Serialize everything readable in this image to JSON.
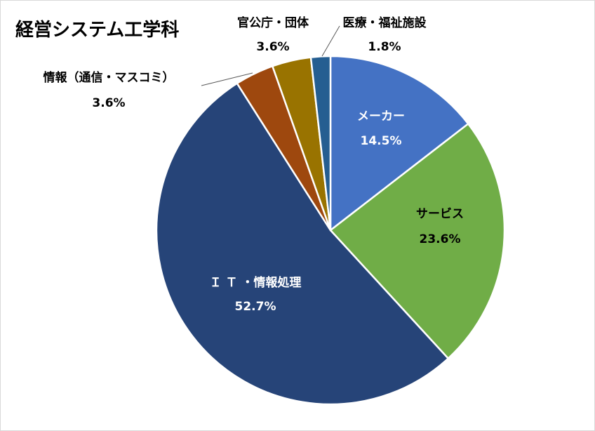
{
  "chart_data": {
    "type": "pie",
    "title": "経営システム工学科",
    "slices": [
      {
        "label": "メーカー",
        "value": 14.5,
        "pct": "14.5%",
        "color": "#4472c4",
        "text_color": "#ffffff"
      },
      {
        "label": "サービス",
        "value": 23.6,
        "pct": "23.6%",
        "color": "#70ad47",
        "text_color": "#000000"
      },
      {
        "label": "Ｉ Ｔ ・情報処理",
        "value": 52.7,
        "pct": "52.7%",
        "color": "#264478",
        "text_color": "#ffffff"
      },
      {
        "label": "情報（通信・マスコミ）",
        "value": 3.6,
        "pct": "3.6%",
        "color": "#9e480e",
        "text_color": "#000000"
      },
      {
        "label": "官公庁・団体",
        "value": 3.6,
        "pct": "3.6%",
        "color": "#997300",
        "text_color": "#000000"
      },
      {
        "label": "医療・福祉施設",
        "value": 1.8,
        "pct": "1.8%",
        "color": "#255e91",
        "text_color": "#000000"
      }
    ],
    "legend": "none"
  }
}
